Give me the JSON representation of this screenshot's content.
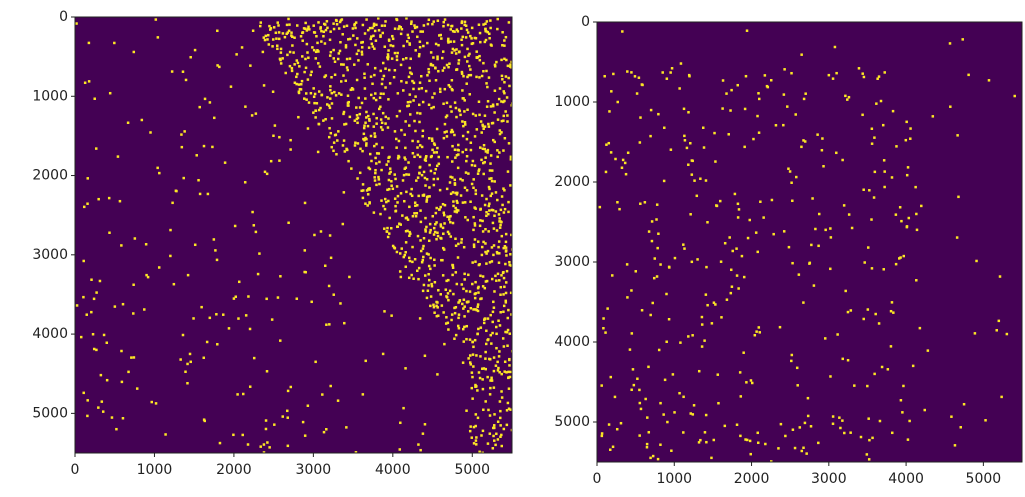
{
  "chart_data": [
    {
      "type": "image",
      "colormap": [
        "#440154",
        "#fde725"
      ],
      "xlim": [
        0,
        5500
      ],
      "ylim": [
        5500,
        0
      ],
      "xticks": [
        0,
        1000,
        2000,
        3000,
        4000,
        5000
      ],
      "yticks": [
        0,
        1000,
        2000,
        3000,
        4000,
        5000
      ]
    },
    {
      "type": "image",
      "colormap": [
        "#440154",
        "#fde725"
      ],
      "xlim": [
        0,
        5500
      ],
      "ylim": [
        5500,
        0
      ],
      "xticks": [
        0,
        1000,
        2000,
        3000,
        4000,
        5000
      ],
      "yticks": [
        0,
        1000,
        2000,
        3000,
        4000,
        5000
      ]
    }
  ]
}
